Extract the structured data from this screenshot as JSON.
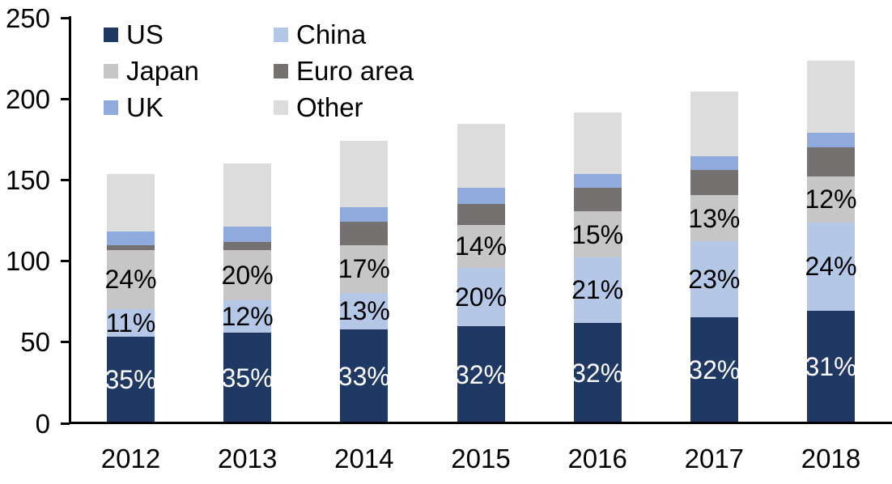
{
  "chart_data": {
    "type": "bar",
    "stacked": true,
    "title": "",
    "x": [
      "2012",
      "2013",
      "2014",
      "2015",
      "2016",
      "2017",
      "2018"
    ],
    "ylim": [
      0,
      250
    ],
    "yticks": [
      0,
      50,
      100,
      150,
      200,
      250
    ],
    "grid": false,
    "legend_position": "top-left",
    "legend_columns": 2,
    "axis_color": "#000000",
    "text_color": "#000000",
    "series": [
      {
        "name": "US",
        "color": "#1F3864",
        "label_color": "#FFFFFF",
        "values": [
          53.5,
          56,
          58,
          60,
          62,
          65.5,
          69.5
        ],
        "segment_labels": [
          "35%",
          "35%",
          "33%",
          "32%",
          "32%",
          "32%",
          "31%"
        ]
      },
      {
        "name": "China",
        "color": "#B4C7E7",
        "label_color": "#000000",
        "values": [
          17,
          20,
          22.5,
          36,
          40.5,
          47,
          54.5
        ],
        "segment_labels": [
          "11%",
          "12%",
          "13%",
          "20%",
          "21%",
          "23%",
          "24%"
        ]
      },
      {
        "name": "Japan",
        "color": "#C6C6C6",
        "label_color": "#000000",
        "values": [
          36.5,
          31,
          29.5,
          26.5,
          28,
          28,
          28
        ],
        "segment_labels": [
          "24%",
          "20%",
          "17%",
          "14%",
          "15%",
          "13%",
          "12%"
        ]
      },
      {
        "name": "Euro area",
        "color": "#767171",
        "label_color": "#000000",
        "values": [
          3,
          5,
          14.5,
          12.5,
          14.5,
          15.5,
          18
        ],
        "segment_labels": [
          "",
          "",
          "",
          "",
          "",
          "",
          ""
        ]
      },
      {
        "name": "UK",
        "color": "#8FAADC",
        "label_color": "#000000",
        "values": [
          8.5,
          9.5,
          8.5,
          10,
          8.5,
          8.5,
          9
        ],
        "segment_labels": [
          "",
          "",
          "",
          "",
          "",
          "",
          ""
        ]
      },
      {
        "name": "Other",
        "color": "#DCDCDC",
        "label_color": "#000000",
        "values": [
          35,
          38.5,
          41,
          39.5,
          38,
          40,
          44.5
        ],
        "segment_labels": [
          "",
          "",
          "",
          "",
          "",
          "",
          ""
        ]
      }
    ],
    "totals": [
      153.5,
      160,
      174,
      184.5,
      191.5,
      204.5,
      223.5
    ]
  }
}
